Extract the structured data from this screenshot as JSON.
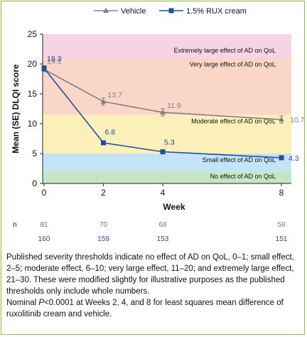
{
  "chart_data": {
    "type": "line",
    "ylabel": "Mean (SE) DLQI score",
    "xlabel": "Week",
    "x": [
      0,
      2,
      4,
      8
    ],
    "xticks": [
      "0",
      "2",
      "4",
      "8"
    ],
    "ylim": [
      0,
      25
    ],
    "yticks": [
      "0",
      "5",
      "10",
      "15",
      "20",
      "25"
    ],
    "legend_position": "top",
    "series": [
      {
        "name": "Vehicle",
        "color": "#808080",
        "marker": "triangle",
        "values": [
          19.1,
          13.7,
          11.9,
          10.7
        ],
        "labels": [
          "19.1",
          "13.7",
          "11.9",
          "10.7"
        ],
        "se": [
          0.4,
          0.6,
          0.6,
          0.6
        ]
      },
      {
        "name": "1.5% RUX cream",
        "color": "#1f4fa0",
        "marker": "square",
        "values": [
          19.3,
          6.8,
          5.3,
          4.3
        ],
        "labels": [
          "19.3",
          "6.8",
          "5.3",
          "4.3"
        ],
        "se": [
          0.4,
          0.3,
          0.3,
          0.3
        ]
      }
    ],
    "bands": [
      {
        "from": 0,
        "to": 2,
        "color": "#c6e5c2",
        "label": "No effect of AD on QoL"
      },
      {
        "from": 2,
        "to": 5,
        "color": "#c4e4f6",
        "label": "Small effect of AD on QoL"
      },
      {
        "from": 5,
        "to": 11.5,
        "color": "#fbf0b9",
        "label": "Moderate effect of AD on QoL"
      },
      {
        "from": 11.5,
        "to": 21,
        "color": "#fad6c9",
        "label": "Very large effect of AD on QoL"
      },
      {
        "from": 21,
        "to": 25,
        "color": "#f6d4e3",
        "label": "Extremely large effect of AD on QoL"
      }
    ],
    "n_table": {
      "row_label": "n",
      "vehicle": [
        "81",
        "70",
        "68",
        "58"
      ],
      "rux": [
        "160",
        "159",
        "153",
        "151"
      ]
    }
  },
  "footnote": {
    "line1": "Published severity thresholds indicate no effect of AD on QoL, 0–1; small effect, 2–5; moderate effect, 6–10; very large effect, 11–20; and extremely large effect, 21–30. These were modified slightly for illustrative purposes as the published thresholds only include whole numbers.",
    "line2_pre": "Nominal ",
    "line2_italic": "P",
    "line2_post": "<0.0001 at Weeks 2, 4, and 8 for least squares mean difference of ruxolitinib cream and vehicle."
  }
}
